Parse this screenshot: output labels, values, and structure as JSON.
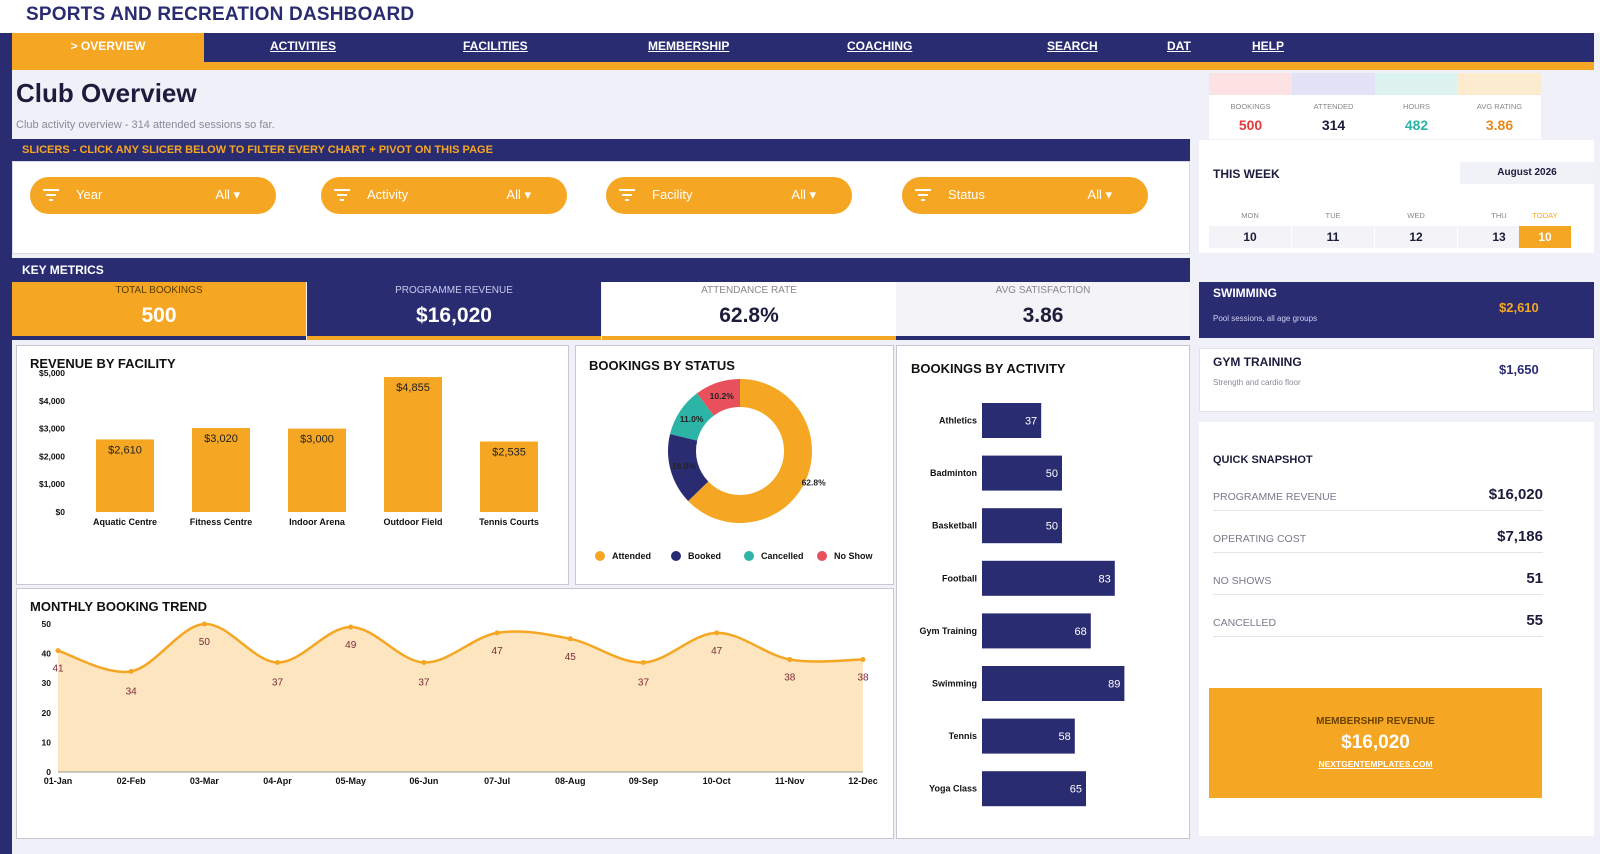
{
  "app_title": "SPORTS AND RECREATION DASHBOARD",
  "nav": [
    {
      "label": "> OVERVIEW",
      "active": true
    },
    {
      "label": "ACTIVITIES"
    },
    {
      "label": "FACILITIES"
    },
    {
      "label": "MEMBERSHIP"
    },
    {
      "label": "COACHING"
    },
    {
      "label": "SEARCH"
    },
    {
      "label": "DAT"
    },
    {
      "label": "HELP"
    }
  ],
  "page": {
    "title": "Club Overview",
    "subtitle": "Club activity overview  -  314 attended sessions so far."
  },
  "top_stats": [
    {
      "label": "BOOKINGS",
      "value": "500",
      "color": "#e23b3b",
      "band": "#fde2e4"
    },
    {
      "label": "ATTENDED",
      "value": "314",
      "color": "#1c1c3c",
      "band": "#e2e3f7"
    },
    {
      "label": "HOURS",
      "value": "482",
      "color": "#2cb5a6",
      "band": "#dcf3ef"
    },
    {
      "label": "AVG RATING",
      "value": "3.86",
      "color": "#e6891c",
      "band": "#fdebd0"
    }
  ],
  "slicers": {
    "header": "SLICERS  -  CLICK ANY SLICER BELOW TO FILTER EVERY CHART + PIVOT ON THIS PAGE",
    "items": [
      {
        "name": "Year",
        "value": "All ▾"
      },
      {
        "name": "Activity",
        "value": "All ▾"
      },
      {
        "name": "Facility",
        "value": "All ▾"
      },
      {
        "name": "Status",
        "value": "All ▾"
      }
    ]
  },
  "key_metrics": {
    "header": "KEY METRICS",
    "items": [
      {
        "label": "TOTAL BOOKINGS",
        "value": "500"
      },
      {
        "label": "PROGRAMME REVENUE",
        "value": "$16,020"
      },
      {
        "label": "ATTENDANCE RATE",
        "value": "62.8%"
      },
      {
        "label": "AVG SATISFACTION",
        "value": "3.86"
      }
    ]
  },
  "this_week": {
    "title": "THIS WEEK",
    "month": "August 2026",
    "days": [
      {
        "day": "MON",
        "date": "10"
      },
      {
        "day": "TUE",
        "date": "11"
      },
      {
        "day": "WED",
        "date": "12"
      },
      {
        "day": "THU",
        "date": "13"
      },
      {
        "day": "TODAY",
        "date": "10",
        "today": true
      }
    ]
  },
  "activity_cards": [
    {
      "name": "SWIMMING",
      "desc": "Pool sessions, all age groups",
      "value": "$2,610"
    },
    {
      "name": "GYM TRAINING",
      "desc": "Strength and cardio floor",
      "value": "$1,650"
    }
  ],
  "snapshot": {
    "title": "QUICK SNAPSHOT",
    "rows": [
      {
        "label": "PROGRAMME REVENUE",
        "value": "$16,020"
      },
      {
        "label": "OPERATING COST",
        "value": "$7,186"
      },
      {
        "label": "NO SHOWS",
        "value": "51"
      },
      {
        "label": "CANCELLED",
        "value": "55"
      }
    ],
    "membership_label": "MEMBERSHIP REVENUE",
    "membership_value": "$16,020",
    "link": "NEXTGENTEMPLATES.COM"
  },
  "colors": {
    "navy": "#2a2c72",
    "orange": "#f5a623",
    "teal": "#2cb5a6",
    "red": "#e8505b"
  },
  "chart_data": [
    {
      "type": "bar",
      "title": "REVENUE BY FACILITY",
      "categories": [
        "Aquatic Centre",
        "Fitness Centre",
        "Indoor Arena",
        "Outdoor Field",
        "Tennis Courts"
      ],
      "values": [
        2610,
        3020,
        3000,
        4855,
        2535
      ],
      "value_labels": [
        "$2,610",
        "$3,020",
        "$3,000",
        "$4,855",
        "$2,535"
      ],
      "ylim": [
        0,
        5000
      ],
      "yticks": [
        "$0",
        "$1,000",
        "$2,000",
        "$3,000",
        "$4,000",
        "$5,000"
      ],
      "color": "#f5a623"
    },
    {
      "type": "pie",
      "title": "BOOKINGS BY STATUS",
      "donut": true,
      "labels": [
        "Attended",
        "Booked",
        "Cancelled",
        "No Show"
      ],
      "values": [
        62.8,
        16.0,
        11.0,
        10.2
      ],
      "value_labels": [
        "62.8%",
        "16.0%",
        "11.0%",
        "10.2%"
      ],
      "colors": [
        "#f5a623",
        "#2a2c72",
        "#2cb5a6",
        "#e8505b"
      ],
      "legend": "bottom"
    },
    {
      "type": "bar",
      "orientation": "horizontal",
      "title": "BOOKINGS BY ACTIVITY",
      "categories": [
        "Athletics",
        "Badminton",
        "Basketball",
        "Football",
        "Gym Training",
        "Swimming",
        "Tennis",
        "Yoga Class"
      ],
      "values": [
        37,
        50,
        50,
        83,
        68,
        89,
        58,
        65
      ],
      "xlim": [
        0,
        100
      ],
      "color": "#2a2c72"
    },
    {
      "type": "area",
      "title": "MONTHLY BOOKING TREND",
      "categories": [
        "01-Jan",
        "02-Feb",
        "03-Mar",
        "04-Apr",
        "05-May",
        "06-Jun",
        "07-Jul",
        "08-Aug",
        "09-Sep",
        "10-Oct",
        "11-Nov",
        "12-Dec"
      ],
      "values": [
        41,
        34,
        50,
        37,
        49,
        37,
        47,
        45,
        37,
        47,
        38,
        38
      ],
      "ylim": [
        0,
        50
      ],
      "yticks": [
        "0",
        "10",
        "20",
        "30",
        "40",
        "50"
      ],
      "line_color": "#f5a623",
      "fill_color": "#fde5bf"
    }
  ]
}
